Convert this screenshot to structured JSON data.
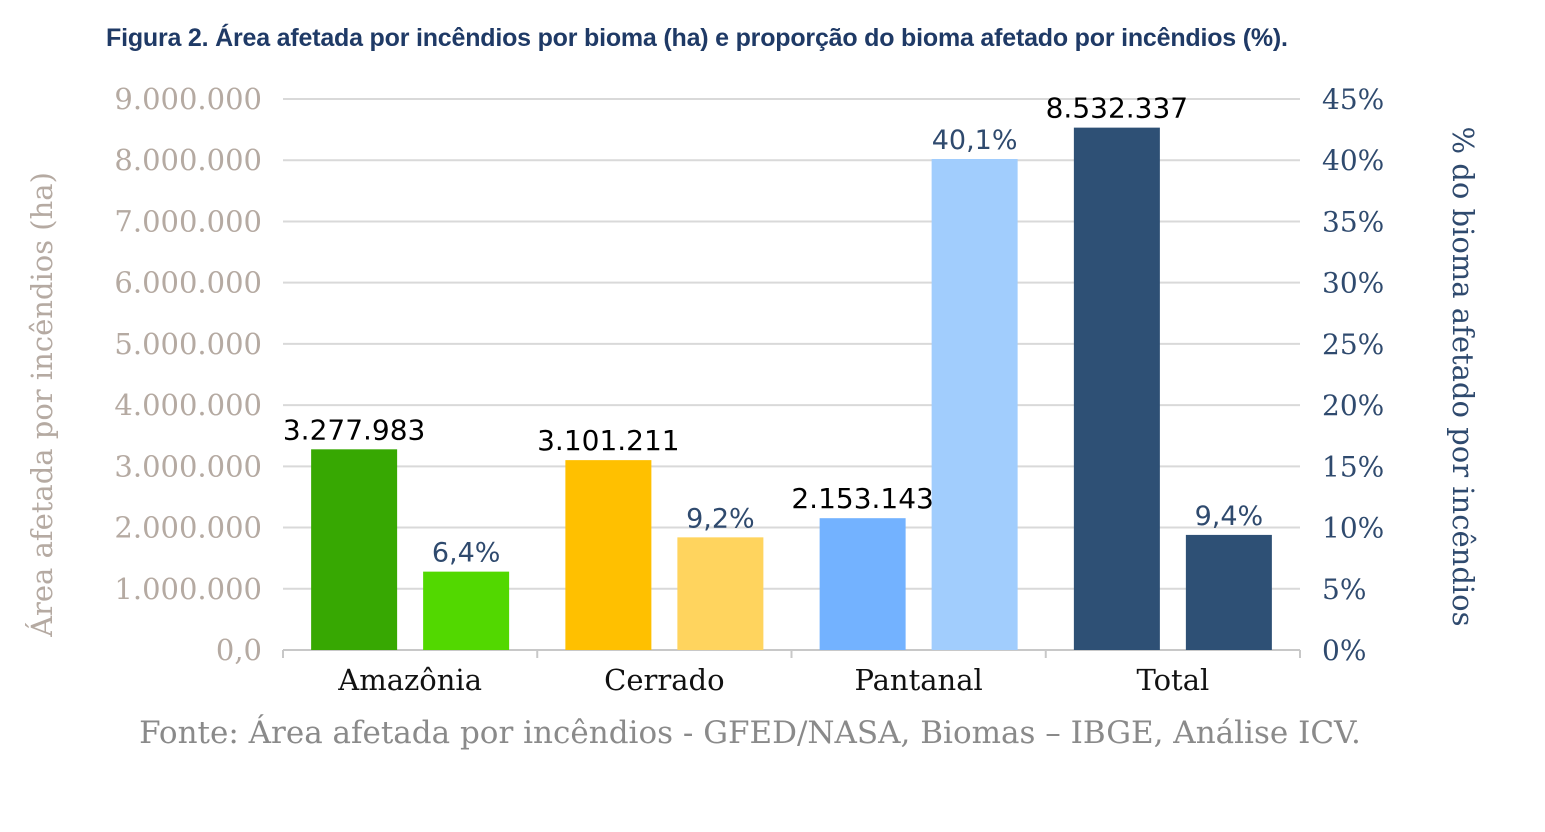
{
  "title": "Figura 2. Área afetada por incêndios por bioma (ha) e proporção do bioma afetado por incêndios (%).",
  "source": "Fonte: Área afetada por incêndios - GFED/NASA, Biomas – IBGE, Análise ICV.",
  "chart_data": {
    "type": "bar",
    "categories": [
      "Amazônia",
      "Cerrado",
      "Pantanal",
      "Total"
    ],
    "ylabel": "Área afetada por incêndios (ha)",
    "y2label": "% do bioma afetado por incêndios",
    "ylim": [
      0,
      9000000
    ],
    "y2lim": [
      0,
      45
    ],
    "y_ticks": [
      "0,0",
      "1.000.000",
      "2.000.000",
      "3.000.000",
      "4.000.000",
      "5.000.000",
      "6.000.000",
      "7.000.000",
      "8.000.000",
      "9.000.000"
    ],
    "y2_ticks": [
      "0%",
      "5%",
      "10%",
      "15%",
      "20%",
      "25%",
      "30%",
      "35%",
      "40%",
      "45%"
    ],
    "grid": true,
    "series": [
      {
        "axis": "left",
        "values": [
          3277983,
          3101211,
          2153143,
          8532337
        ],
        "labels": [
          "3.277.983",
          "3.101.211",
          "2.153.143",
          "8.532.337"
        ],
        "colors": [
          "#37a802",
          "#ffc000",
          "#73b2ff",
          "#2e5075"
        ]
      },
      {
        "axis": "right",
        "values": [
          6.4,
          9.2,
          40.1,
          9.4
        ],
        "labels": [
          "6,4%",
          "9,2%",
          "40,1%",
          "9,4%"
        ],
        "colors": [
          "#52d800",
          "#ffd45e",
          "#a1cdfd",
          "#2e5075"
        ]
      }
    ]
  }
}
